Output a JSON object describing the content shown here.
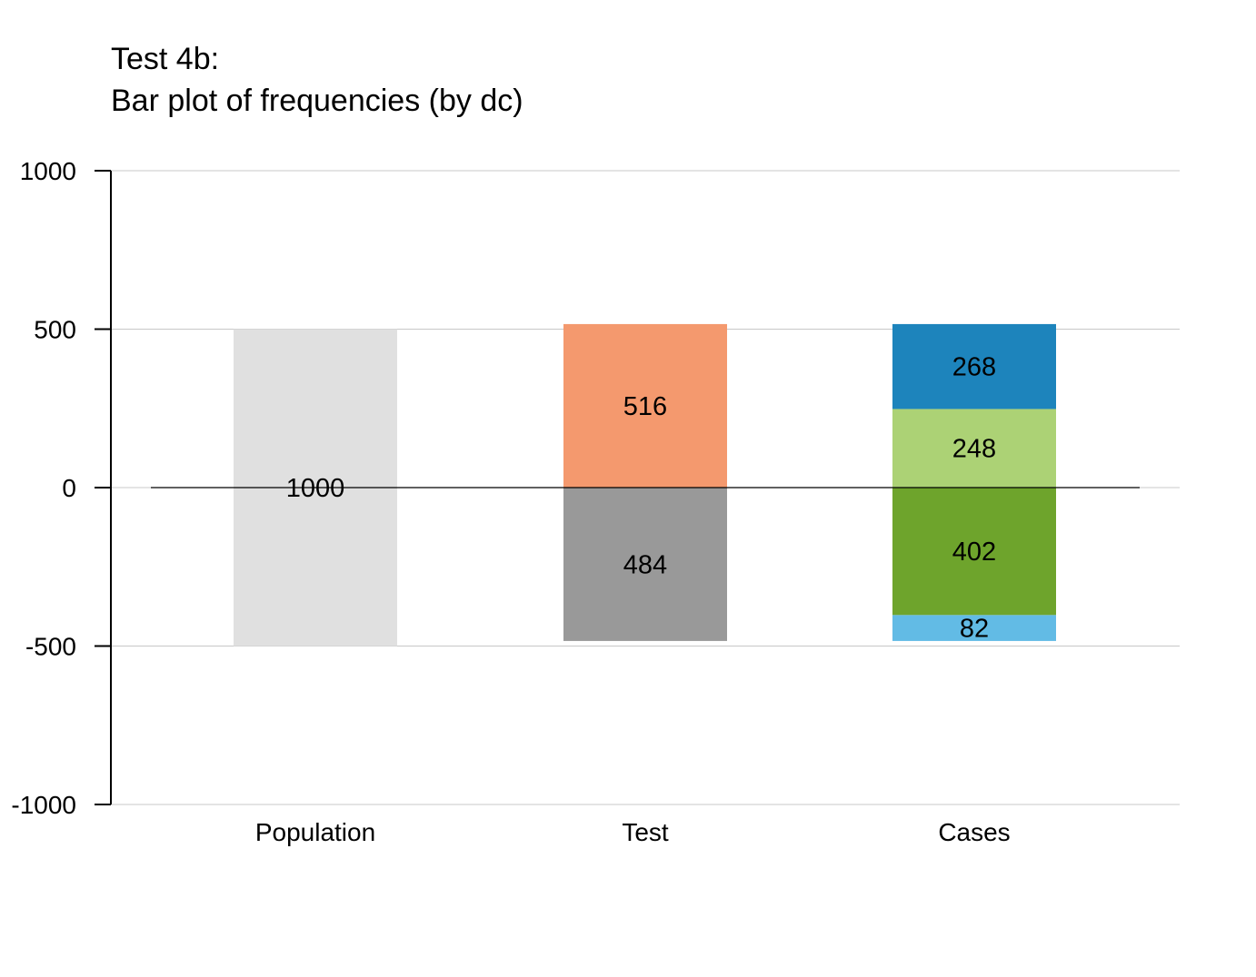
{
  "chart_data": {
    "type": "bar",
    "stacked": true,
    "title_lines": [
      "Test 4b:",
      "Bar plot of frequencies (by dc)"
    ],
    "xlabel": "",
    "ylabel": "",
    "ylim": [
      -1000,
      1000
    ],
    "yticks": [
      1000,
      500,
      0,
      -500,
      -1000
    ],
    "ytick_labels": [
      "1000",
      "500",
      "0",
      "-500",
      "-1000"
    ],
    "grid": "horizontal",
    "baseline": 0,
    "categories": [
      {
        "label": "Population",
        "segments": [
          {
            "value": 1000,
            "from": -500,
            "to": 500,
            "label": "1000",
            "color": "#e0e0e0"
          }
        ]
      },
      {
        "label": "Test",
        "segments": [
          {
            "value": 484,
            "from": -484,
            "to": 0,
            "label": "484",
            "color": "#999999"
          },
          {
            "value": 516,
            "from": 0,
            "to": 516,
            "label": "516",
            "color": "#f4996e"
          }
        ]
      },
      {
        "label": "Cases",
        "segments": [
          {
            "value": 82,
            "from": -484,
            "to": -402,
            "label": "82",
            "color": "#62bbe5"
          },
          {
            "value": 402,
            "from": -402,
            "to": 0,
            "label": "402",
            "color": "#6ea42c"
          },
          {
            "value": 248,
            "from": 0,
            "to": 248,
            "label": "248",
            "color": "#acd275"
          },
          {
            "value": 268,
            "from": 248,
            "to": 516,
            "label": "268",
            "color": "#1d84bc"
          }
        ]
      }
    ],
    "colors": {
      "axis": "#000000",
      "grid": "#c8c8c8",
      "baseline": "#000000"
    }
  }
}
